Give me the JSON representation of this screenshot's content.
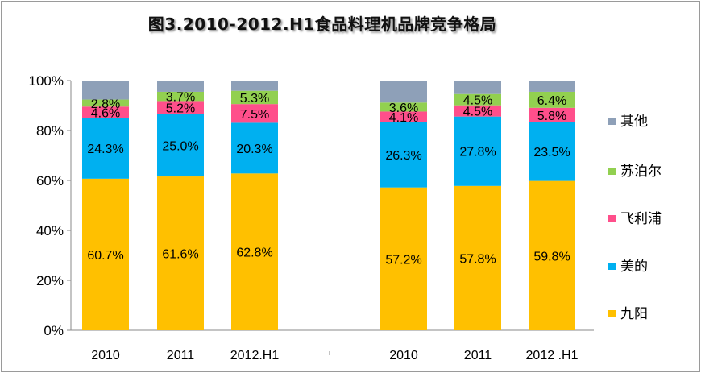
{
  "chart_data": {
    "type": "bar",
    "stacked": true,
    "title": "图3.2010-2012.H1食品料理机品牌竞争格局",
    "xlabel": "",
    "ylabel": "",
    "ylim": [
      0,
      100
    ],
    "y_ticks": [
      "0%",
      "20%",
      "40%",
      "60%",
      "80%",
      "100%"
    ],
    "grid": false,
    "legend_position": "right",
    "groups": [
      {
        "categories": [
          "2010",
          "2011",
          "2012.H1"
        ],
        "series": [
          {
            "name": "九阳",
            "color": "#FFC000",
            "values": [
              60.7,
              61.6,
              62.8
            ],
            "labels": [
              "60.7%",
              "61.6%",
              "62.8%"
            ]
          },
          {
            "name": "美的",
            "color": "#00B0F0",
            "values": [
              24.3,
              25.0,
              20.3
            ],
            "labels": [
              "24.3%",
              "25.0%",
              "20.3%"
            ]
          },
          {
            "name": "飞利浦",
            "color": "#FF4F8B",
            "values": [
              4.6,
              5.2,
              7.5
            ],
            "labels": [
              "4.6%",
              "5.2%",
              "7.5%"
            ]
          },
          {
            "name": "苏泊尔",
            "color": "#92D050",
            "values": [
              2.8,
              3.7,
              5.3
            ],
            "labels": [
              "2.8%",
              "3.7%",
              "5.3%"
            ]
          },
          {
            "name": "其他",
            "color": "#8EA0B8",
            "values": [
              7.6,
              4.5,
              4.1
            ],
            "labels": [
              "",
              "",
              ""
            ]
          }
        ]
      },
      {
        "categories": [
          "2010",
          "2011",
          "2012 .H1"
        ],
        "series": [
          {
            "name": "九阳",
            "color": "#FFC000",
            "values": [
              57.2,
              57.8,
              59.8
            ],
            "labels": [
              "57.2%",
              "57.8%",
              "59.8%"
            ]
          },
          {
            "name": "美的",
            "color": "#00B0F0",
            "values": [
              26.3,
              27.8,
              23.5
            ],
            "labels": [
              "26.3%",
              "27.8%",
              "23.5%"
            ]
          },
          {
            "name": "飞利浦",
            "color": "#FF4F8B",
            "values": [
              4.1,
              4.5,
              5.8
            ],
            "labels": [
              "4.1%",
              "4.5%",
              "5.8%"
            ]
          },
          {
            "name": "苏泊尔",
            "color": "#92D050",
            "values": [
              3.6,
              4.5,
              6.4
            ],
            "labels": [
              "3.6%",
              "4.5%",
              "6.4%"
            ]
          },
          {
            "name": "其他",
            "color": "#8EA0B8",
            "values": [
              8.8,
              5.4,
              4.5
            ],
            "labels": [
              "",
              "",
              ""
            ]
          }
        ]
      }
    ],
    "legend": [
      {
        "name": "其他",
        "color": "#8EA0B8"
      },
      {
        "name": "苏泊尔",
        "color": "#92D050"
      },
      {
        "name": "飞利浦",
        "color": "#FF4F8B"
      },
      {
        "name": "美的",
        "color": "#00B0F0"
      },
      {
        "name": "九阳",
        "color": "#FFC000"
      }
    ]
  }
}
